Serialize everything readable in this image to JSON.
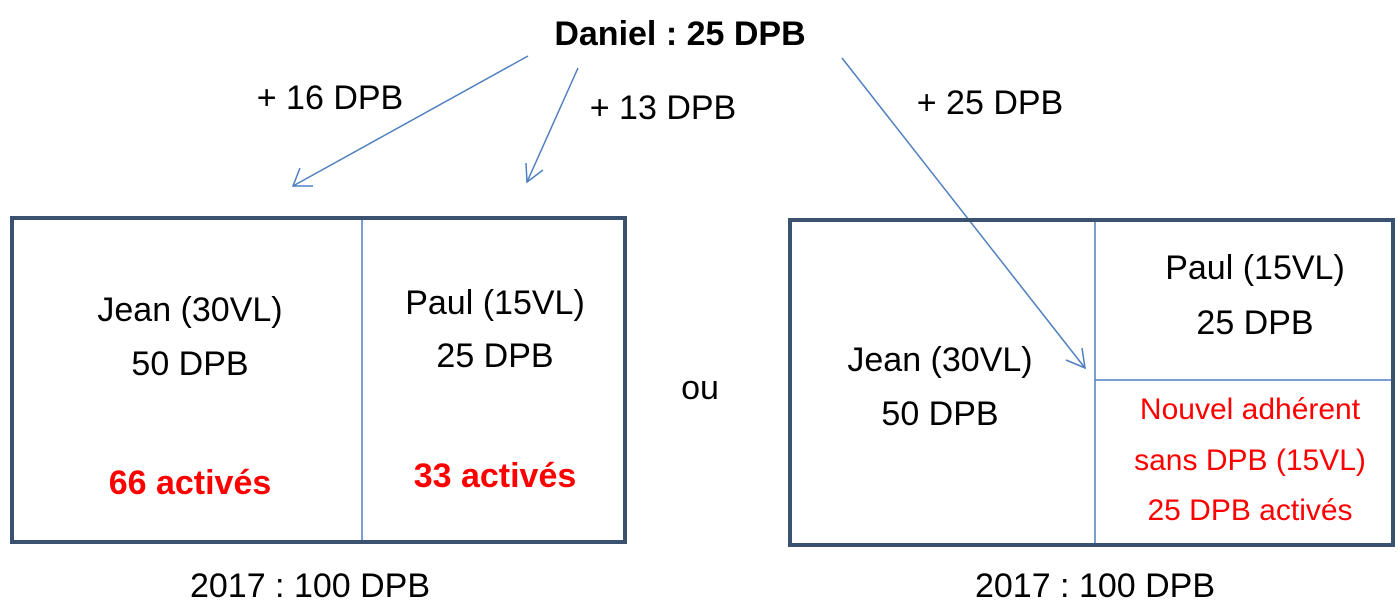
{
  "title": "Daniel : 25 DPB",
  "transfers": [
    "+ 16 DPB",
    "+ 13 DPB",
    "+ 25 DPB"
  ],
  "left": {
    "jean": [
      "Jean (30VL)",
      "50 DPB"
    ],
    "jean_activated": "66 activés",
    "paul": [
      "Paul (15VL)",
      "25 DPB"
    ],
    "paul_activated": "33 activés",
    "footer": "2017 : 100 DPB"
  },
  "separator": "ou",
  "right": {
    "jean": [
      "Jean (30VL)",
      "50 DPB"
    ],
    "paul": [
      "Paul (15VL)",
      "25 DPB"
    ],
    "new_member": [
      "Nouvel adhérent",
      "sans DPB (15VL)",
      "25 DPB activés"
    ],
    "footer": "2017 : 100 DPB"
  }
}
